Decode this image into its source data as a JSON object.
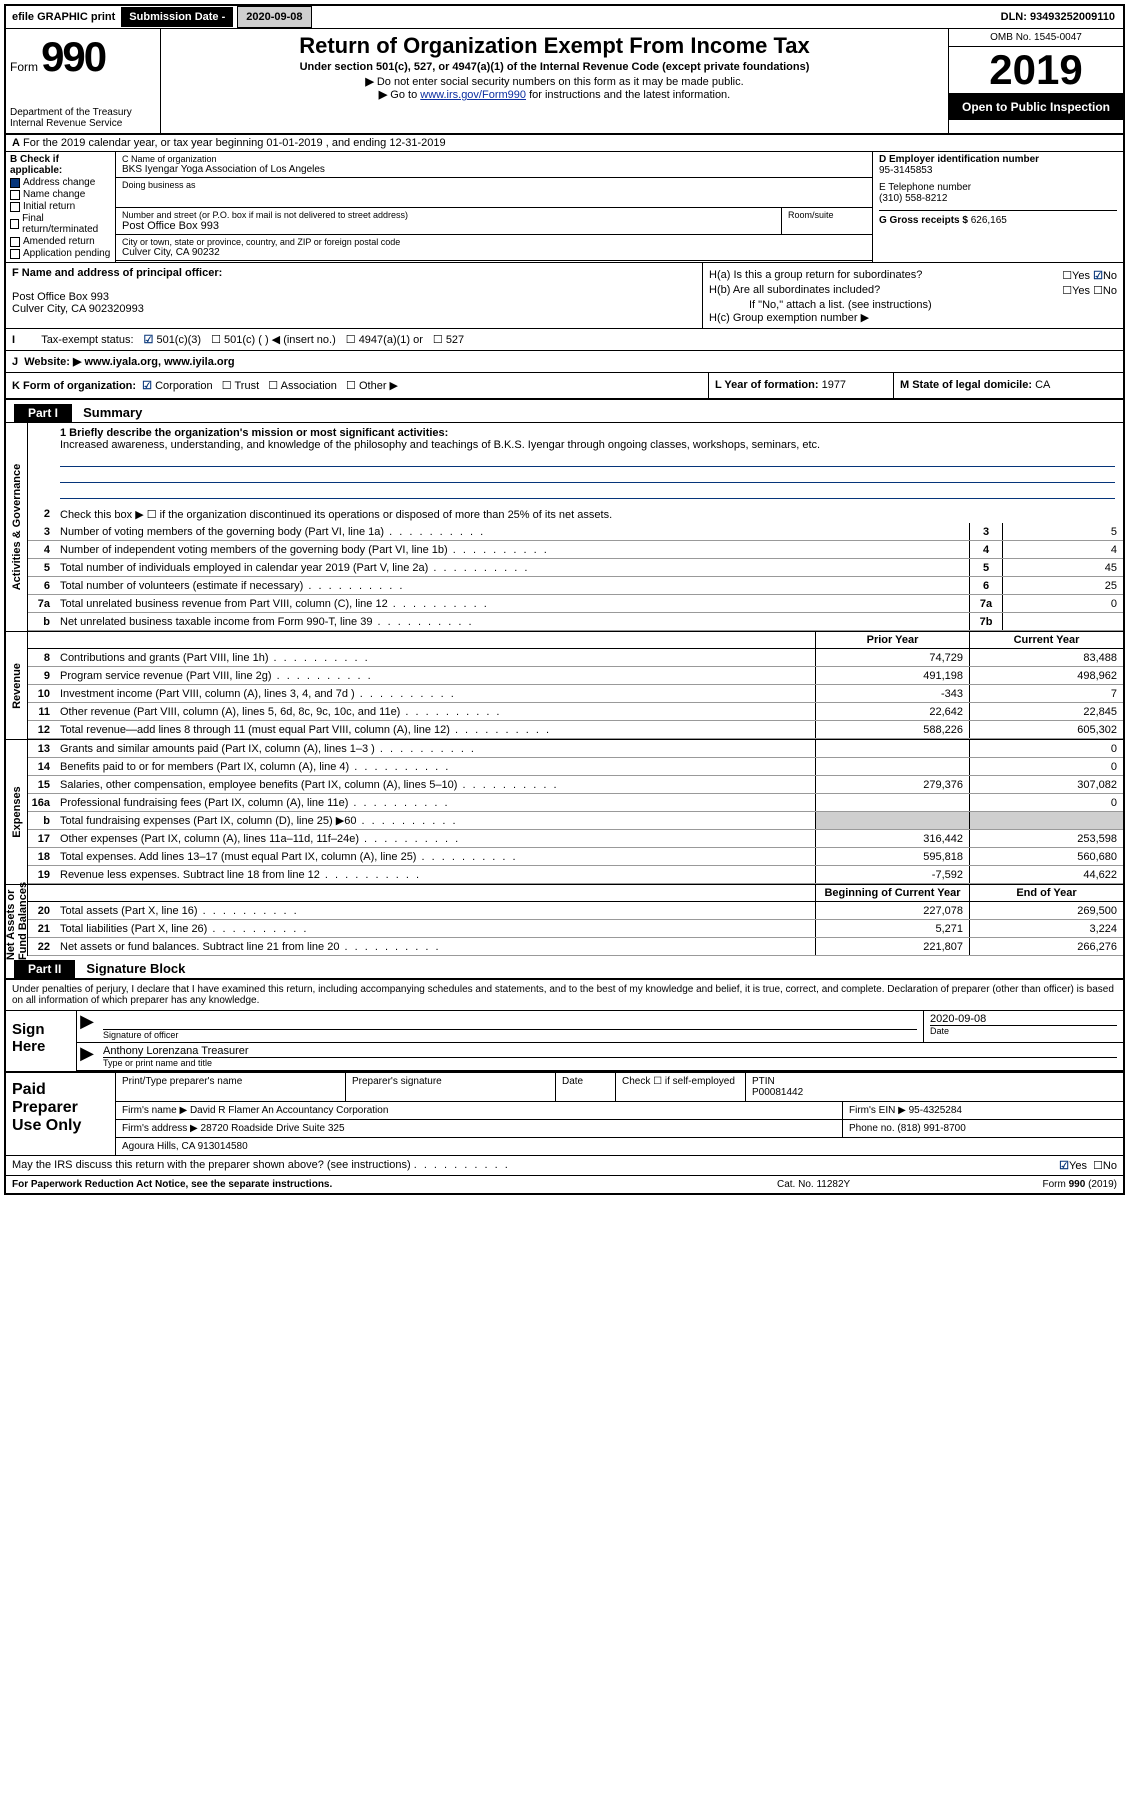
{
  "topbar": {
    "efile": "efile GRAPHIC print",
    "sub_label": "Submission Date -",
    "sub_date": "2020-09-08",
    "dln": "DLN: 93493252009110"
  },
  "header": {
    "form_word": "Form",
    "form_num": "990",
    "dept": "Department of the Treasury\nInternal Revenue Service",
    "title": "Return of Organization Exempt From Income Tax",
    "subtitle": "Under section 501(c), 527, or 4947(a)(1) of the Internal Revenue Code (except private foundations)",
    "instr1": "Do not enter social security numbers on this form as it may be made public.",
    "instr2_pre": "Go to ",
    "instr2_link": "www.irs.gov/Form990",
    "instr2_post": " for instructions and the latest information.",
    "omb": "OMB No. 1545-0047",
    "year": "2019",
    "opi": "Open to Public Inspection"
  },
  "period": "For the 2019 calendar year, or tax year beginning 01-01-2019    , and ending 12-31-2019",
  "colB": {
    "title": "B Check if applicable:",
    "items": [
      "Address change",
      "Name change",
      "Initial return",
      "Final return/terminated",
      "Amended return",
      "Application pending"
    ],
    "checked_idx": 0
  },
  "colC": {
    "name_lbl": "C Name of organization",
    "name": "BKS Iyengar Yoga Association of Los Angeles",
    "dba_lbl": "Doing business as",
    "addr_lbl": "Number and street (or P.O. box if mail is not delivered to street address)",
    "room_lbl": "Room/suite",
    "addr": "Post Office Box 993",
    "city_lbl": "City or town, state or province, country, and ZIP or foreign postal code",
    "city": "Culver City, CA  90232"
  },
  "colD": {
    "ein_lbl": "D Employer identification number",
    "ein": "95-3145853",
    "tel_lbl": "E Telephone number",
    "tel": "(310) 558-8212",
    "gross_lbl": "G Gross receipts $",
    "gross": "626,165"
  },
  "rowF": {
    "lbl": "F  Name and address of principal officer:",
    "addr1": "Post Office Box 993",
    "addr2": "Culver City, CA  902320993",
    "ha": "H(a)  Is this a group return for subordinates?",
    "hb": "H(b)  Are all subordinates included?",
    "hb_note": "If \"No,\" attach a list. (see instructions)",
    "hc": "H(c)  Group exemption number ▶"
  },
  "tax_status": {
    "lbl": "Tax-exempt status:",
    "a": "501(c)(3)",
    "b": "501(c) (  ) ◀ (insert no.)",
    "c": "4947(a)(1) or",
    "d": "527"
  },
  "website": {
    "lbl": "J",
    "txt": "Website: ▶  www.iyala.org, www.iyila.org"
  },
  "korg": {
    "lbl": "K Form of organization:",
    "opts": [
      "Corporation",
      "Trust",
      "Association",
      "Other ▶"
    ],
    "l_lbl": "L Year of formation:",
    "l_val": "1977",
    "m_lbl": "M State of legal domicile:",
    "m_val": "CA"
  },
  "part1": {
    "hdr": "Part I",
    "title": "Summary",
    "mission_lbl": "1  Briefly describe the organization's mission or most significant activities:",
    "mission": "Increased awareness, understanding, and knowledge of the philosophy and teachings of B.K.S. Iyengar through ongoing classes, workshops, seminars, etc.",
    "line2": "Check this box ▶ ☐  if the organization discontinued its operations or disposed of more than 25% of its net assets.",
    "gov_lines": [
      {
        "n": "3",
        "t": "Number of voting members of the governing body (Part VI, line 1a)",
        "b": "3",
        "v": "5"
      },
      {
        "n": "4",
        "t": "Number of independent voting members of the governing body (Part VI, line 1b)",
        "b": "4",
        "v": "4"
      },
      {
        "n": "5",
        "t": "Total number of individuals employed in calendar year 2019 (Part V, line 2a)",
        "b": "5",
        "v": "45"
      },
      {
        "n": "6",
        "t": "Total number of volunteers (estimate if necessary)",
        "b": "6",
        "v": "25"
      },
      {
        "n": "7a",
        "t": "Total unrelated business revenue from Part VIII, column (C), line 12",
        "b": "7a",
        "v": "0"
      },
      {
        "n": "b",
        "t": "Net unrelated business taxable income from Form 990-T, line 39",
        "b": "7b",
        "v": ""
      }
    ],
    "col_prior": "Prior Year",
    "col_curr": "Current Year",
    "rev_lines": [
      {
        "n": "8",
        "t": "Contributions and grants (Part VIII, line 1h)",
        "p": "74,729",
        "c": "83,488"
      },
      {
        "n": "9",
        "t": "Program service revenue (Part VIII, line 2g)",
        "p": "491,198",
        "c": "498,962"
      },
      {
        "n": "10",
        "t": "Investment income (Part VIII, column (A), lines 3, 4, and 7d )",
        "p": "-343",
        "c": "7"
      },
      {
        "n": "11",
        "t": "Other revenue (Part VIII, column (A), lines 5, 6d, 8c, 9c, 10c, and 11e)",
        "p": "22,642",
        "c": "22,845"
      },
      {
        "n": "12",
        "t": "Total revenue—add lines 8 through 11 (must equal Part VIII, column (A), line 12)",
        "p": "588,226",
        "c": "605,302"
      }
    ],
    "exp_lines": [
      {
        "n": "13",
        "t": "Grants and similar amounts paid (Part IX, column (A), lines 1–3 )",
        "p": "",
        "c": "0"
      },
      {
        "n": "14",
        "t": "Benefits paid to or for members (Part IX, column (A), line 4)",
        "p": "",
        "c": "0"
      },
      {
        "n": "15",
        "t": "Salaries, other compensation, employee benefits (Part IX, column (A), lines 5–10)",
        "p": "279,376",
        "c": "307,082"
      },
      {
        "n": "16a",
        "t": "Professional fundraising fees (Part IX, column (A), line 11e)",
        "p": "",
        "c": "0"
      },
      {
        "n": "b",
        "t": "Total fundraising expenses (Part IX, column (D), line 25) ▶60",
        "p": "SHADE",
        "c": "SHADE"
      },
      {
        "n": "17",
        "t": "Other expenses (Part IX, column (A), lines 11a–11d, 11f–24e)",
        "p": "316,442",
        "c": "253,598"
      },
      {
        "n": "18",
        "t": "Total expenses. Add lines 13–17 (must equal Part IX, column (A), line 25)",
        "p": "595,818",
        "c": "560,680"
      },
      {
        "n": "19",
        "t": "Revenue less expenses. Subtract line 18 from line 12",
        "p": "-7,592",
        "c": "44,622"
      }
    ],
    "na_hdr_p": "Beginning of Current Year",
    "na_hdr_c": "End of Year",
    "na_lines": [
      {
        "n": "20",
        "t": "Total assets (Part X, line 16)",
        "p": "227,078",
        "c": "269,500"
      },
      {
        "n": "21",
        "t": "Total liabilities (Part X, line 26)",
        "p": "5,271",
        "c": "3,224"
      },
      {
        "n": "22",
        "t": "Net assets or fund balances. Subtract line 21 from line 20",
        "p": "221,807",
        "c": "266,276"
      }
    ]
  },
  "part2": {
    "hdr": "Part II",
    "title": "Signature Block",
    "decl": "Under penalties of perjury, I declare that I have examined this return, including accompanying schedules and statements, and to the best of my knowledge and belief, it is true, correct, and complete. Declaration of preparer (other than officer) is based on all information of which preparer has any knowledge.",
    "sign_here": "Sign Here",
    "sig_officer": "Signature of officer",
    "sig_date": "2020-09-08",
    "sig_date_lbl": "Date",
    "name_title": "Anthony Lorenzana  Treasurer",
    "name_title_lbl": "Type or print name and title",
    "paid": "Paid Preparer Use Only",
    "prep_name_lbl": "Print/Type preparer's name",
    "prep_sig_lbl": "Preparer's signature",
    "prep_date_lbl": "Date",
    "prep_check": "Check ☐ if self-employed",
    "ptin_lbl": "PTIN",
    "ptin": "P00081442",
    "firm_name_lbl": "Firm's name    ▶",
    "firm_name": "David R Flamer An Accountancy Corporation",
    "firm_ein_lbl": "Firm's EIN ▶",
    "firm_ein": "95-4325284",
    "firm_addr_lbl": "Firm's address ▶",
    "firm_addr": "28720 Roadside Drive Suite 325",
    "firm_city": "Agoura Hills, CA  913014580",
    "phone_lbl": "Phone no.",
    "phone": "(818) 991-8700",
    "discuss": "May the IRS discuss this return with the preparer shown above? (see instructions)"
  },
  "footer": {
    "left": "For Paperwork Reduction Act Notice, see the separate instructions.",
    "mid": "Cat. No. 11282Y",
    "right": "Form 990 (2019)"
  }
}
